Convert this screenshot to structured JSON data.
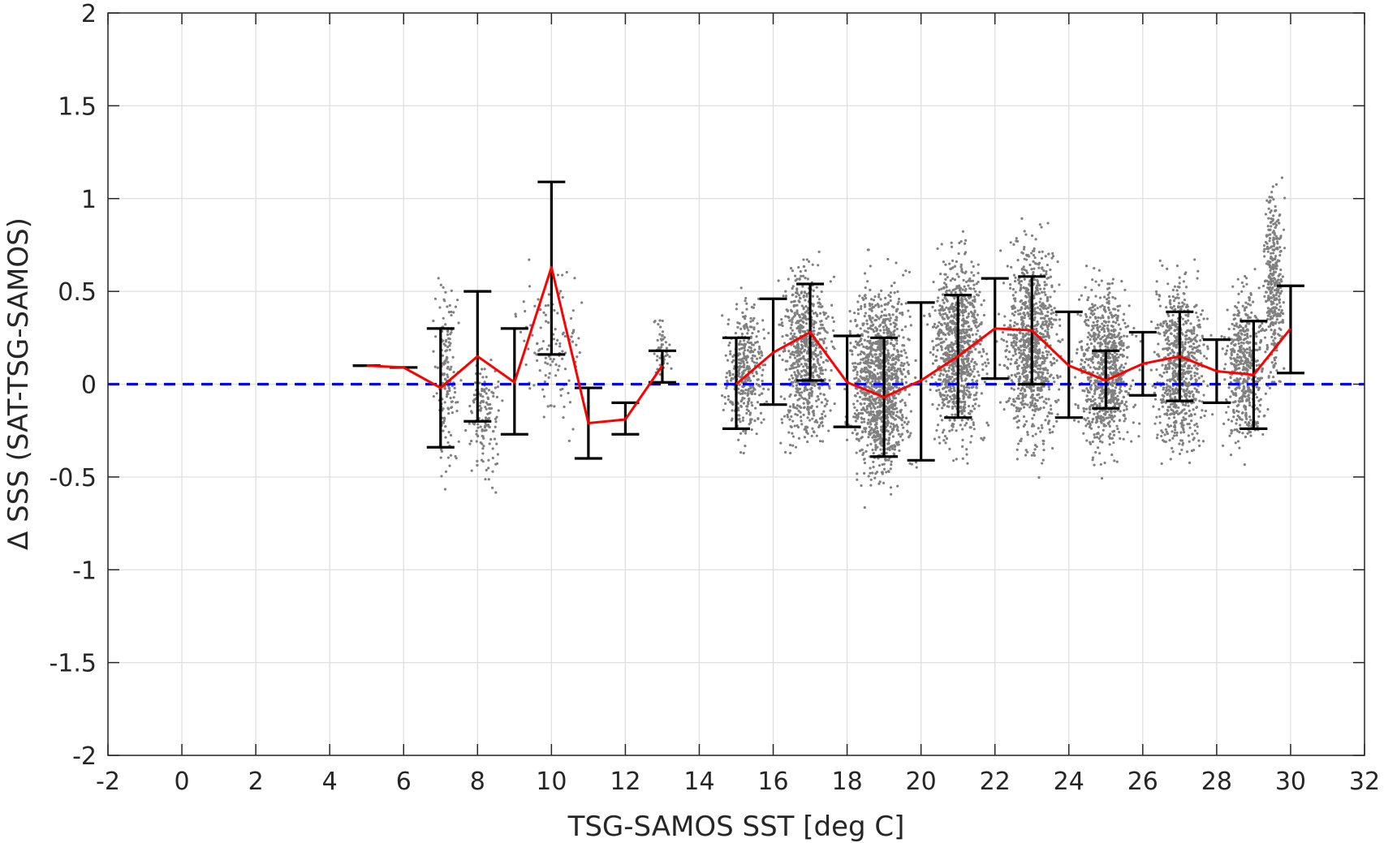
{
  "chart_data": {
    "type": "scatter",
    "title": "",
    "xlabel": "TSG-SAMOS SST [deg C]",
    "ylabel": "Δ SSS (SAT-TSG-SAMOS)",
    "xlim": [
      -2,
      32
    ],
    "ylim": [
      -2,
      2
    ],
    "xticks": [
      "-2",
      "0",
      "2",
      "4",
      "6",
      "8",
      "10",
      "12",
      "14",
      "16",
      "18",
      "20",
      "22",
      "24",
      "26",
      "28",
      "30",
      "32"
    ],
    "yticks": [
      "-2",
      "-1.5",
      "-1",
      "-0.5",
      "0",
      "0.5",
      "1",
      "1.5",
      "2"
    ],
    "grid": true,
    "colors": {
      "scatter": "#808080",
      "mean": "#ff0000",
      "errorbar": "#000000",
      "zero": "#0000ff"
    },
    "reference_line": {
      "y": 0,
      "style": "dashed"
    },
    "scatter_clusters": [
      {
        "x": [
          6.7,
          7.6
        ],
        "y": [
          -0.6,
          0.7
        ],
        "density": 160
      },
      {
        "x": [
          7.6,
          8.8
        ],
        "y": [
          -0.65,
          0.3
        ],
        "density": 140
      },
      {
        "x": [
          8.8,
          11.2
        ],
        "y": [
          -0.4,
          0.75
        ],
        "density": 120
      },
      {
        "x": [
          12.6,
          13.3
        ],
        "y": [
          -0.05,
          0.4
        ],
        "density": 50
      },
      {
        "x": [
          14.5,
          16.0
        ],
        "y": [
          -0.45,
          0.6
        ],
        "density": 350
      },
      {
        "x": [
          16.0,
          17.8
        ],
        "y": [
          -0.5,
          0.8
        ],
        "density": 700
      },
      {
        "x": [
          17.8,
          20.0
        ],
        "y": [
          -0.72,
          0.75
        ],
        "density": 1200
      },
      {
        "x": [
          20.0,
          22.0
        ],
        "y": [
          -0.5,
          0.9
        ],
        "density": 900
      },
      {
        "x": [
          22.0,
          24.0
        ],
        "y": [
          -0.55,
          1.0
        ],
        "density": 900
      },
      {
        "x": [
          24.0,
          26.0
        ],
        "y": [
          -0.55,
          0.7
        ],
        "density": 800
      },
      {
        "x": [
          26.0,
          28.0
        ],
        "y": [
          -0.55,
          0.75
        ],
        "density": 700
      },
      {
        "x": [
          28.0,
          29.5
        ],
        "y": [
          -0.5,
          0.7
        ],
        "density": 500
      },
      {
        "x": [
          29.2,
          29.9
        ],
        "y": [
          -0.2,
          1.25
        ],
        "density": 350
      }
    ],
    "series": [
      {
        "x": [
          5,
          6,
          7,
          8,
          9,
          10,
          11,
          12,
          13,
          15,
          16,
          17,
          18,
          19,
          20,
          21,
          22,
          23,
          24,
          25,
          26,
          27,
          28,
          29,
          30
        ],
        "mean": [
          0.1,
          0.09,
          -0.02,
          0.15,
          0.01,
          0.63,
          -0.21,
          -0.19,
          0.1,
          0.0,
          0.17,
          0.28,
          0.01,
          -0.07,
          0.02,
          0.15,
          0.3,
          0.29,
          0.1,
          0.02,
          0.11,
          0.15,
          0.07,
          0.05,
          0.3
        ],
        "lower": [
          0.1,
          0.09,
          -0.34,
          -0.2,
          -0.27,
          0.16,
          -0.4,
          -0.27,
          0.01,
          -0.24,
          -0.11,
          0.02,
          -0.23,
          -0.39,
          -0.41,
          -0.18,
          0.03,
          0.0,
          -0.18,
          -0.13,
          -0.06,
          -0.09,
          -0.1,
          -0.24,
          0.06
        ],
        "upper": [
          0.1,
          0.09,
          0.3,
          0.5,
          0.3,
          1.09,
          -0.02,
          -0.1,
          0.18,
          0.25,
          0.46,
          0.54,
          0.26,
          0.25,
          0.44,
          0.48,
          0.57,
          0.58,
          0.39,
          0.18,
          0.28,
          0.39,
          0.24,
          0.34,
          0.53
        ]
      }
    ]
  }
}
